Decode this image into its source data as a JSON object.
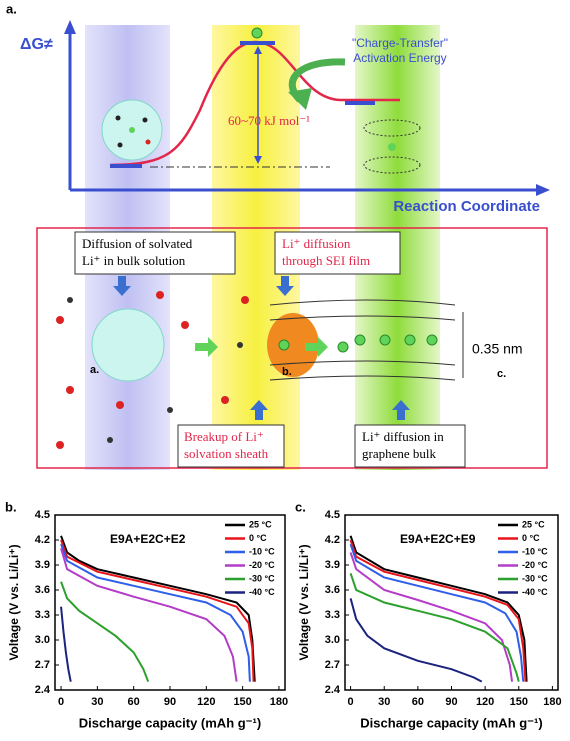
{
  "panel_a": {
    "label": "a.",
    "y_axis_label": "ΔG≠",
    "x_axis_label": "Reaction Coordinate",
    "activation_annotation": [
      "\"Charge-Transfer\"",
      "Activation Energy"
    ],
    "energy_label": "60~70 kJ mol⁻¹",
    "boxes": [
      {
        "lines": [
          "Diffusion of solvated",
          "Li⁺ in bulk solution"
        ]
      },
      {
        "lines": [
          "Li⁺ diffusion",
          "through SEI film"
        ]
      },
      {
        "lines": [
          "Breakup of Li⁺",
          "solvation sheath"
        ]
      },
      {
        "lines": [
          "Li⁺ diffusion in",
          "graphene bulk"
        ]
      }
    ],
    "interlayer_spacing": "0.35 nm",
    "site_labels": [
      "a.",
      "b.",
      "c."
    ]
  },
  "chart_data": [
    {
      "type": "line",
      "panel_label": "b.",
      "title": "E9A+E2C+E2",
      "x_label": "Discharge capacity (mAh g⁻¹)",
      "y_label": "Voltage (V vs. Li/Li⁺)",
      "xlim": [
        -5,
        185
      ],
      "xticks": [
        0,
        30,
        60,
        90,
        120,
        150,
        180
      ],
      "ylim": [
        2.4,
        4.5
      ],
      "yticks": [
        2.4,
        2.7,
        {
          "value": 3,
          "label": "3.0"
        },
        3.3,
        3.6,
        3.9,
        4.2,
        4.5
      ],
      "legend": "upper right",
      "series": [
        {
          "name": "25 °C",
          "color": "#000000",
          "x": [
            0,
            5,
            15,
            30,
            60,
            90,
            120,
            145,
            155,
            158,
            160
          ],
          "values": [
            4.25,
            4.05,
            3.95,
            3.85,
            3.75,
            3.65,
            3.55,
            3.45,
            3.3,
            3.0,
            2.5
          ]
        },
        {
          "name": "0 °C",
          "color": "#e8141b",
          "x": [
            0,
            5,
            30,
            60,
            90,
            120,
            145,
            155,
            158,
            159
          ],
          "values": [
            4.2,
            4.0,
            3.82,
            3.72,
            3.62,
            3.52,
            3.4,
            3.2,
            2.9,
            2.5
          ]
        },
        {
          "name": "-10 °C",
          "color": "#2f5ee8",
          "x": [
            0,
            5,
            30,
            60,
            90,
            120,
            140,
            150,
            155,
            156
          ],
          "values": [
            4.15,
            3.95,
            3.75,
            3.65,
            3.55,
            3.45,
            3.3,
            3.1,
            2.8,
            2.5
          ]
        },
        {
          "name": "-20 °C",
          "color": "#b43cc8",
          "x": [
            0,
            5,
            30,
            60,
            90,
            120,
            135,
            142,
            145
          ],
          "values": [
            4.1,
            3.85,
            3.65,
            3.52,
            3.4,
            3.25,
            3.05,
            2.8,
            2.5
          ]
        },
        {
          "name": "-30 °C",
          "color": "#2ca02c",
          "x": [
            0,
            5,
            15,
            30,
            45,
            60,
            68,
            72
          ],
          "values": [
            3.7,
            3.5,
            3.35,
            3.2,
            3.05,
            2.85,
            2.65,
            2.5
          ]
        },
        {
          "name": "-40 °C",
          "color": "#1a237e",
          "x": [
            0,
            2,
            4,
            6,
            8
          ],
          "values": [
            3.4,
            3.1,
            2.85,
            2.65,
            2.5
          ]
        }
      ]
    },
    {
      "type": "line",
      "panel_label": "c.",
      "title": "E9A+E2C+E9",
      "x_label": "Discharge capacity (mAh g⁻¹)",
      "y_label": "Voltage (V vs. Li/Li⁺)",
      "xlim": [
        -5,
        185
      ],
      "xticks": [
        0,
        30,
        60,
        90,
        120,
        150,
        180
      ],
      "ylim": [
        2.4,
        4.5
      ],
      "yticks": [
        2.4,
        2.7,
        {
          "value": 3,
          "label": "3.0"
        },
        3.3,
        3.6,
        3.9,
        4.2,
        4.5
      ],
      "legend": "upper right",
      "series": [
        {
          "name": "25 °C",
          "color": "#000000",
          "x": [
            0,
            5,
            30,
            60,
            90,
            120,
            140,
            150,
            155,
            157
          ],
          "values": [
            4.25,
            4.05,
            3.85,
            3.75,
            3.65,
            3.55,
            3.45,
            3.3,
            3.0,
            2.5
          ]
        },
        {
          "name": "0 °C",
          "color": "#e8141b",
          "x": [
            0,
            5,
            30,
            60,
            90,
            120,
            140,
            150,
            154,
            156
          ],
          "values": [
            4.2,
            4.0,
            3.82,
            3.72,
            3.62,
            3.52,
            3.42,
            3.25,
            2.9,
            2.5
          ]
        },
        {
          "name": "-10 °C",
          "color": "#2f5ee8",
          "x": [
            0,
            5,
            30,
            60,
            90,
            120,
            138,
            148,
            152,
            154
          ],
          "values": [
            4.15,
            3.95,
            3.75,
            3.65,
            3.55,
            3.45,
            3.32,
            3.1,
            2.8,
            2.5
          ]
        },
        {
          "name": "-20 °C",
          "color": "#b43cc8",
          "x": [
            0,
            5,
            30,
            60,
            90,
            120,
            135,
            142,
            144
          ],
          "values": [
            4.05,
            3.85,
            3.6,
            3.48,
            3.35,
            3.2,
            3.0,
            2.7,
            2.5
          ]
        },
        {
          "name": "-30 °C",
          "color": "#2ca02c",
          "x": [
            0,
            5,
            30,
            60,
            90,
            120,
            140,
            148,
            150
          ],
          "values": [
            3.8,
            3.6,
            3.45,
            3.35,
            3.25,
            3.1,
            2.9,
            2.6,
            2.5
          ]
        },
        {
          "name": "-40 °C",
          "color": "#1a237e",
          "x": [
            0,
            5,
            15,
            30,
            60,
            90,
            110,
            117
          ],
          "values": [
            3.5,
            3.25,
            3.05,
            2.9,
            2.75,
            2.65,
            2.55,
            2.5
          ]
        }
      ]
    }
  ]
}
